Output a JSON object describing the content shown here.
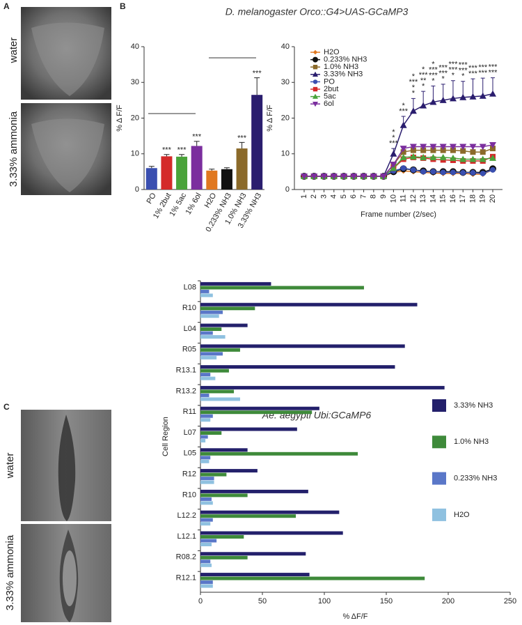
{
  "figure": {
    "panel_labels": [
      "A",
      "B",
      "C"
    ],
    "photo_labels": [
      "water",
      "3.33% ammonia",
      "water",
      "3.33% ammonia"
    ],
    "titles": [
      "D. melanogaster Orco::G4>UAS-GCaMP3",
      "Ae. aegypti Ubi:GCaMP6"
    ]
  },
  "chart_data": [
    {
      "type": "bar",
      "ylabel": "% Δ F/F",
      "categories": [
        "PO",
        "1% 2but",
        "1% 5ac",
        "1% 6ol",
        "H2O",
        "0.233% NH3",
        "1.0% NH3",
        "3.33% NH3"
      ],
      "values": [
        6,
        9.3,
        9.2,
        12.2,
        5.3,
        5.7,
        11.5,
        26.5
      ],
      "errors": [
        0.5,
        0.5,
        0.6,
        1.3,
        0.4,
        0.4,
        1.7,
        4.8
      ],
      "colors": [
        "#3a4fb0",
        "#d42a2a",
        "#4aa33a",
        "#7b2e9e",
        "#e07820",
        "#111111",
        "#8b6a2a",
        "#2a1d6e"
      ],
      "annotations": [
        null,
        "***",
        "***",
        "***",
        null,
        null,
        "***",
        "***"
      ],
      "ylim": [
        0,
        40
      ],
      "yticks": [
        0,
        10,
        20,
        30,
        40
      ]
    },
    {
      "type": "line",
      "ylabel": "% Δ F/F",
      "xlabel": "Frame number (2/sec)",
      "categories": [
        "1",
        "2",
        "3",
        "4",
        "5",
        "6",
        "7",
        "8",
        "9",
        "10",
        "11",
        "12",
        "13",
        "14",
        "15",
        "16",
        "17",
        "18",
        "19",
        "20"
      ],
      "ylim": [
        0,
        40
      ],
      "yticks": [
        0,
        10,
        20,
        30,
        40
      ],
      "series": [
        {
          "name": "H2O",
          "color": "#e07820",
          "marker": "diamond",
          "values": [
            3.7,
            3.7,
            3.7,
            3.7,
            3.7,
            3.7,
            3.7,
            3.7,
            3.7,
            4.8,
            5.2,
            5,
            4.8,
            4.6,
            4.5,
            4.5,
            4.5,
            4.3,
            4.3,
            5.5
          ]
        },
        {
          "name": "0.233% NH3",
          "color": "#111111",
          "marker": "bigcircle",
          "values": [
            3.7,
            3.7,
            3.7,
            3.7,
            3.7,
            3.7,
            3.7,
            3.7,
            3.7,
            5,
            5.8,
            5.5,
            5.2,
            5,
            5,
            5,
            4.8,
            4.8,
            4.8,
            5.8
          ]
        },
        {
          "name": "1.0% NH3",
          "color": "#8b6a2a",
          "marker": "square",
          "values": [
            3.7,
            3.7,
            3.7,
            3.7,
            3.7,
            3.7,
            3.7,
            3.7,
            3.7,
            7,
            10.5,
            11,
            11,
            11,
            11,
            11,
            10.8,
            10.5,
            10.5,
            11.5
          ]
        },
        {
          "name": "3.33% NH3",
          "color": "#2a1d6e",
          "marker": "triangle",
          "values": [
            3.7,
            3.7,
            3.7,
            3.7,
            3.7,
            3.7,
            3.7,
            3.7,
            3.7,
            10,
            18,
            22,
            23.5,
            24.5,
            25,
            25.5,
            25.8,
            26,
            26.2,
            26.8
          ],
          "errors": [
            0.3,
            0.3,
            0.3,
            0.3,
            0.3,
            0.3,
            0.3,
            0.3,
            0.3,
            1.5,
            2.5,
            3.5,
            4,
            4.5,
            4.5,
            5,
            4.5,
            5,
            5,
            4.5
          ]
        },
        {
          "name": "PO",
          "color": "#3a4fb0",
          "marker": "circle",
          "values": [
            3.7,
            3.7,
            3.7,
            3.7,
            3.7,
            3.7,
            3.7,
            3.7,
            3.7,
            5.2,
            6,
            5.5,
            5,
            5,
            4.8,
            4.8,
            4.7,
            4.7,
            4.5,
            5.5
          ]
        },
        {
          "name": "2but",
          "color": "#d42a2a",
          "marker": "square",
          "values": [
            3.7,
            3.7,
            3.7,
            3.7,
            3.7,
            3.7,
            3.7,
            3.7,
            3.7,
            6,
            8.5,
            9,
            8.8,
            8.5,
            8.3,
            8.2,
            8,
            8,
            8,
            9.2
          ]
        },
        {
          "name": "5ac",
          "color": "#4aa33a",
          "marker": "triangle",
          "values": [
            3.7,
            3.7,
            3.7,
            3.7,
            3.7,
            3.7,
            3.7,
            3.7,
            3.7,
            6,
            9,
            9.2,
            9,
            9,
            9,
            8.8,
            8.5,
            8.5,
            8.5,
            8.8
          ]
        },
        {
          "name": "6ol",
          "color": "#7b2e9e",
          "marker": "tridown",
          "values": [
            3.7,
            3.7,
            3.7,
            3.7,
            3.7,
            3.7,
            3.7,
            3.7,
            3.7,
            7,
            11.5,
            12,
            12,
            12,
            12,
            12,
            12,
            12,
            12,
            12.5
          ]
        }
      ],
      "annotations": [
        null,
        null,
        null,
        null,
        null,
        null,
        null,
        null,
        null,
        [
          {
            "text": "*",
            "color": "#4aa33a"
          },
          {
            "text": "*",
            "color": "#3a4fb0"
          },
          {
            "text": "***",
            "color": "#d42a2a"
          }
        ],
        [
          {
            "text": "*",
            "color": "#2a1d6e"
          },
          {
            "text": "***",
            "color": "#d42a2a"
          }
        ],
        [
          {
            "text": "*",
            "color": "#2a1d6e"
          },
          {
            "text": "***",
            "color": "#d42a2a"
          },
          {
            "text": "*",
            "color": "#4aa33a"
          },
          {
            "text": "*",
            "color": "#7b2e9e"
          }
        ],
        [
          {
            "text": "*",
            "color": "#2a1d6e"
          },
          {
            "text": "***",
            "color": "#d42a2a"
          },
          {
            "text": "**",
            "color": "#4aa33a"
          },
          {
            "text": "*",
            "color": "#7b2e9e"
          }
        ],
        [
          {
            "text": "*",
            "color": "#2a1d6e"
          },
          {
            "text": "***",
            "color": "#d42a2a"
          },
          {
            "text": "***",
            "color": "#4aa33a"
          },
          {
            "text": "*",
            "color": "#7b2e9e"
          }
        ],
        [
          {
            "text": "***",
            "color": "#d42a2a"
          },
          {
            "text": "***",
            "color": "#4aa33a"
          },
          {
            "text": "*",
            "color": "#7b2e9e"
          }
        ],
        [
          {
            "text": "***",
            "color": "#d42a2a"
          },
          {
            "text": "***",
            "color": "#4aa33a"
          },
          {
            "text": "*",
            "color": "#7b2e9e"
          }
        ],
        [
          {
            "text": "***",
            "color": "#d42a2a"
          },
          {
            "text": "***",
            "color": "#4aa33a"
          },
          {
            "text": "*",
            "color": "#7b2e9e"
          }
        ],
        [
          {
            "text": "***",
            "color": "#d42a2a"
          },
          {
            "text": "***",
            "color": "#4aa33a"
          }
        ],
        [
          {
            "text": "***",
            "color": "#d42a2a"
          },
          {
            "text": "***",
            "color": "#4aa33a"
          }
        ],
        [
          {
            "text": "***",
            "color": "#d42a2a"
          },
          {
            "text": "***",
            "color": "#4aa33a"
          }
        ]
      ]
    },
    {
      "type": "hbar",
      "xlabel": "% ΔF/F",
      "ylabel": "Cell Region",
      "legend": "right",
      "categories": [
        "L08",
        "R10",
        "L04",
        "R05",
        "R13.1",
        "R13.2",
        "R11",
        "L07",
        "L05",
        "R12",
        "R10",
        "L12.2",
        "L12.1",
        "R08.2",
        "R12.1"
      ],
      "xlim": [
        0,
        250
      ],
      "xticks": [
        0,
        50,
        100,
        150,
        200,
        250
      ],
      "series": [
        {
          "name": "3.33% NH3",
          "color": "#23206b",
          "values": [
            57,
            175,
            38,
            165,
            157,
            197,
            96,
            78,
            38,
            46,
            87,
            112,
            115,
            85,
            88
          ]
        },
        {
          "name": "1.0% NH3",
          "color": "#3e8a3a",
          "values": [
            132,
            44,
            17,
            32,
            23,
            27,
            90,
            17,
            127,
            21,
            38,
            77,
            35,
            38,
            181
          ]
        },
        {
          "name": "0.233% NH3",
          "color": "#5a77c8",
          "values": [
            7,
            18,
            10,
            18,
            8,
            7,
            10,
            6,
            8,
            11,
            9,
            10,
            13,
            8,
            10
          ]
        },
        {
          "name": "H2O",
          "color": "#8fc1e0",
          "values": [
            10,
            15,
            20,
            13,
            12,
            32,
            8,
            4,
            7,
            11,
            10,
            8,
            9,
            9,
            10
          ]
        }
      ]
    }
  ]
}
